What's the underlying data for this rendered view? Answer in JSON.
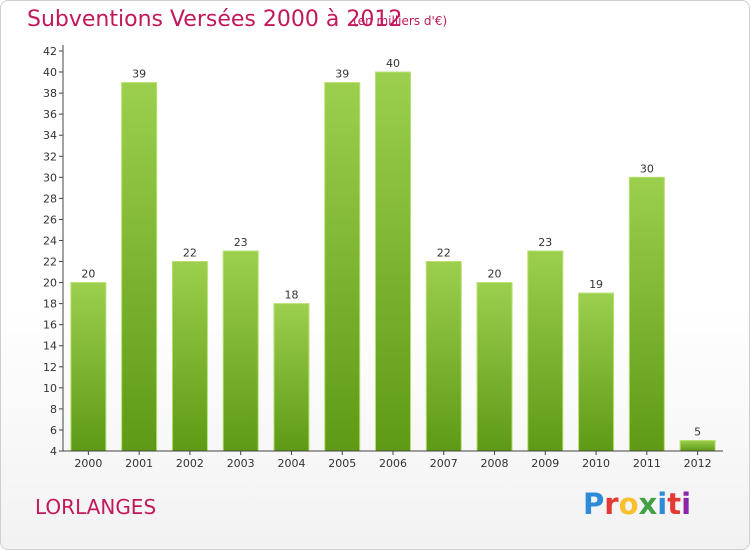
{
  "title": "Subventions Versées 2000 à 2012",
  "subtitle": "(en milliers d'€)",
  "commune": "LORLANGES",
  "brand": {
    "letters": [
      {
        "ch": "P",
        "color": "#2e8bd8"
      },
      {
        "ch": "r",
        "color": "#e53935"
      },
      {
        "ch": "o",
        "color": "#fbc02d"
      },
      {
        "ch": "x",
        "color": "#43a047"
      },
      {
        "ch": "i",
        "color": "#2e8bd8"
      },
      {
        "ch": "t",
        "color": "#e53935"
      },
      {
        "ch": "i",
        "color": "#8e24aa"
      }
    ]
  },
  "colors": {
    "bar_light": "#9ccf4e",
    "bar_dark": "#5e9a16",
    "bar_top": "#b8e070",
    "axis": "#444444",
    "grid": "#dddddd"
  },
  "chart_data": {
    "type": "bar",
    "categories": [
      "2000",
      "2001",
      "2002",
      "2003",
      "2004",
      "2005",
      "2006",
      "2007",
      "2008",
      "2009",
      "2010",
      "2011",
      "2012"
    ],
    "values": [
      20,
      39,
      22,
      23,
      18,
      39,
      40,
      22,
      20,
      23,
      19,
      30,
      5
    ],
    "title": "Subventions Versées 2000 à 2012",
    "xlabel": "",
    "ylabel": "",
    "ylim": [
      4,
      42
    ],
    "yticks": [
      4,
      6,
      8,
      10,
      12,
      14,
      16,
      18,
      20,
      22,
      24,
      26,
      28,
      30,
      32,
      34,
      36,
      38,
      40,
      42
    ],
    "grid": false,
    "legend": "none"
  }
}
